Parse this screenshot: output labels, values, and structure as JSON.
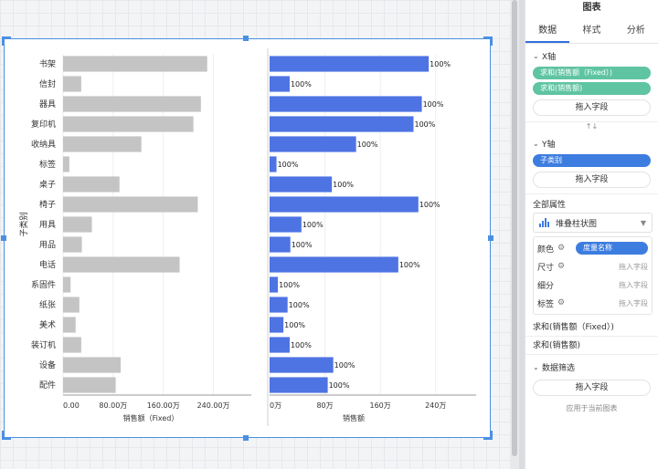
{
  "panel": {
    "title": "图表",
    "tabs": [
      "数据",
      "样式",
      "分析"
    ],
    "x_axis": {
      "label": "X轴",
      "fields": [
        "求和(销售额（Fixed）)",
        "求和(销售额)"
      ],
      "drop": "拖入字段"
    },
    "swap_glyph": "↑↓",
    "y_axis": {
      "label": "Y轴",
      "fields": [
        "子类别"
      ],
      "drop": "拖入字段"
    },
    "all_props": "全部属性",
    "chart_type": "堆叠柱状图",
    "encodings": {
      "color": {
        "label": "颜色",
        "value": "度量名称"
      },
      "size": {
        "label": "尺寸",
        "value": "拖入字段"
      },
      "detail": {
        "label": "细分",
        "value": "拖入字段"
      },
      "tag": {
        "label": "标签",
        "value": "拖入字段"
      }
    },
    "measures": [
      "求和(销售额（Fixed）)",
      "求和(销售额)"
    ],
    "filter": {
      "label": "数据筛选",
      "drop": "拖入字段",
      "apply": "应用于当前图表"
    }
  },
  "chart_data": {
    "type": "bar",
    "orientation": "horizontal",
    "ylabel": "子类别",
    "categories": [
      "书架",
      "信封",
      "器具",
      "复印机",
      "收纳具",
      "标签",
      "桌子",
      "椅子",
      "用具",
      "用品",
      "电话",
      "系固件",
      "纸张",
      "美术",
      "装订机",
      "设备",
      "配件"
    ],
    "series": [
      {
        "name": "销售额（Fixed）",
        "xlabel": "销售额（Fixed）",
        "ticks": [
          "0.00",
          "80.00万",
          "160.00万",
          "240.00万"
        ],
        "xlim": [
          0,
          2800000
        ],
        "color": "#c4c4c4",
        "values": [
          2300000,
          290000,
          2200000,
          2080000,
          1250000,
          100000,
          900000,
          2150000,
          460000,
          300000,
          1860000,
          120000,
          260000,
          200000,
          290000,
          920000,
          840000
        ]
      },
      {
        "name": "销售额",
        "xlabel": "销售额",
        "ticks": [
          "0万",
          "80万",
          "160万",
          "240万"
        ],
        "xlim": [
          0,
          2800000
        ],
        "color": "#4e73e3",
        "values": [
          2300000,
          290000,
          2200000,
          2080000,
          1250000,
          100000,
          900000,
          2150000,
          460000,
          300000,
          1860000,
          120000,
          260000,
          200000,
          290000,
          920000,
          840000
        ],
        "labels": [
          "100%",
          "100%",
          "100%",
          "100%",
          "100%",
          "100%",
          "100%",
          "100%",
          "100%",
          "100%",
          "100%",
          "100%",
          "100%",
          "100%",
          "100%",
          "100%",
          "100%"
        ]
      }
    ]
  }
}
